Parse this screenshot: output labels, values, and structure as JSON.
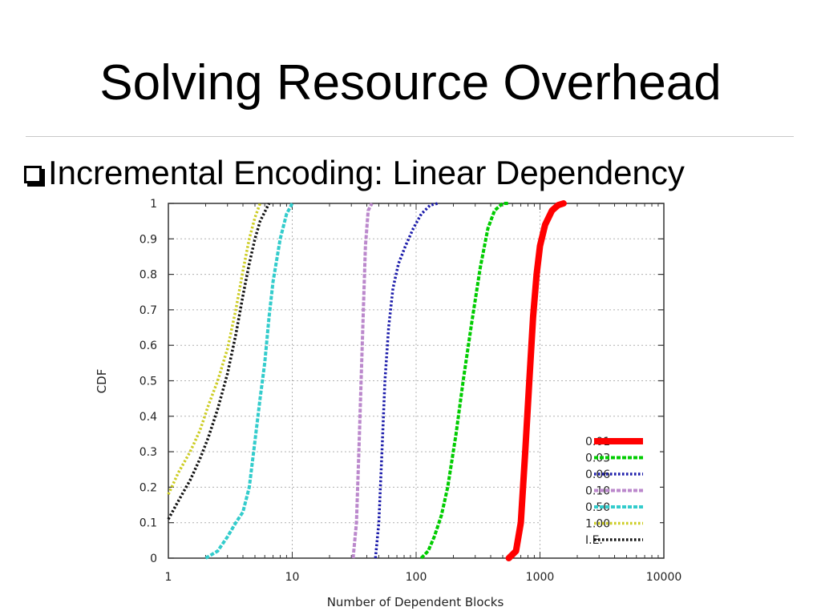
{
  "slide": {
    "title": "Solving Resource Overhead",
    "bullet": "Incremental Encoding: Linear Dependency"
  },
  "chart_data": {
    "type": "line",
    "xlabel": "Number of Dependent Blocks",
    "ylabel": "CDF",
    "xscale": "log",
    "xlim": [
      1,
      10000
    ],
    "ylim": [
      0,
      1
    ],
    "xticks": [
      1,
      10,
      100,
      1000,
      10000
    ],
    "xtick_labels": [
      "1",
      "10",
      "100",
      "1000",
      "10000"
    ],
    "yticks": [
      0,
      0.1,
      0.2,
      0.3,
      0.4,
      0.5,
      0.6,
      0.7,
      0.8,
      0.9,
      1
    ],
    "ytick_labels": [
      "0",
      "0.1",
      "0.2",
      "0.3",
      "0.4",
      "0.5",
      "0.6",
      "0.7",
      "0.8",
      "0.9",
      "1"
    ],
    "grid": true,
    "legend_position": "bottom-right",
    "series": [
      {
        "name": "0.01",
        "color": "#ff0000",
        "style": "solid-thick",
        "x": [
          560,
          640,
          700,
          760,
          820,
          880,
          940,
          1000,
          1100,
          1250,
          1400,
          1550
        ],
        "y": [
          0,
          0.02,
          0.1,
          0.3,
          0.5,
          0.68,
          0.8,
          0.88,
          0.94,
          0.98,
          0.995,
          1
        ]
      },
      {
        "name": "0.03",
        "color": "#00cc00",
        "style": "dashed",
        "x": [
          110,
          125,
          140,
          160,
          180,
          210,
          240,
          280,
          330,
          380,
          430,
          500,
          560
        ],
        "y": [
          0,
          0.02,
          0.06,
          0.12,
          0.2,
          0.35,
          0.5,
          0.66,
          0.82,
          0.93,
          0.98,
          1,
          1
        ]
      },
      {
        "name": "0.06",
        "color": "#1a1aaa",
        "style": "dotted",
        "x": [
          47,
          50,
          53,
          56,
          60,
          65,
          72,
          82,
          95,
          110,
          130,
          150
        ],
        "y": [
          0,
          0.1,
          0.3,
          0.5,
          0.65,
          0.76,
          0.83,
          0.88,
          0.93,
          0.97,
          0.995,
          1
        ]
      },
      {
        "name": "0.10",
        "color": "#bb88cc",
        "style": "dashed",
        "x": [
          31,
          33,
          34.5,
          36,
          37.5,
          39,
          41,
          44
        ],
        "y": [
          0,
          0.1,
          0.3,
          0.5,
          0.7,
          0.88,
          0.98,
          1
        ]
      },
      {
        "name": "0.50",
        "color": "#33cccc",
        "style": "dashed",
        "x": [
          2,
          2.5,
          3,
          3.5,
          4,
          4.5,
          5,
          5.5,
          6,
          6.5,
          7,
          8,
          9,
          10
        ],
        "y": [
          0,
          0.02,
          0.06,
          0.1,
          0.13,
          0.2,
          0.33,
          0.45,
          0.55,
          0.68,
          0.78,
          0.9,
          0.97,
          1
        ]
      },
      {
        "name": "1.00",
        "color": "#cccc22",
        "style": "dotted",
        "x": [
          1,
          1.2,
          1.5,
          1.8,
          2.1,
          2.5,
          3,
          3.5,
          4,
          4.5,
          5,
          5.5
        ],
        "y": [
          0.18,
          0.24,
          0.3,
          0.36,
          0.43,
          0.5,
          0.59,
          0.7,
          0.81,
          0.9,
          0.96,
          1
        ]
      },
      {
        "name": "I.E.",
        "color": "#111111",
        "style": "dotted",
        "x": [
          1,
          1.2,
          1.5,
          1.8,
          2.1,
          2.5,
          3,
          3.5,
          4,
          4.5,
          5,
          5.5,
          6.5
        ],
        "y": [
          0.11,
          0.16,
          0.22,
          0.28,
          0.34,
          0.42,
          0.52,
          0.63,
          0.74,
          0.83,
          0.9,
          0.95,
          1
        ]
      }
    ]
  }
}
